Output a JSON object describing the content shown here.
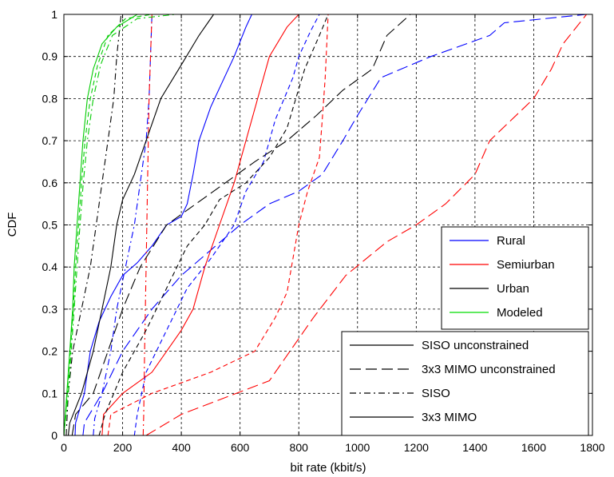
{
  "chart_data": {
    "type": "line",
    "xlabel": "bit rate (kbit/s)",
    "ylabel": "CDF",
    "xlim": [
      0,
      1800
    ],
    "ylim": [
      0,
      1
    ],
    "xticks": [
      0,
      200,
      400,
      600,
      800,
      1000,
      1200,
      1400,
      1600,
      1800
    ],
    "yticks": [
      0,
      0.1,
      0.2,
      0.3,
      0.4,
      0.5,
      0.6,
      0.7,
      0.8,
      0.9,
      1
    ],
    "xtick_labels": [
      "0",
      "200",
      "400",
      "600",
      "800",
      "1000",
      "1200",
      "1400",
      "1600",
      "1800"
    ],
    "ytick_labels": [
      "0",
      "0.1",
      "0.2",
      "0.3",
      "0.4",
      "0.5",
      "0.6",
      "0.7",
      "0.8",
      "0.9",
      "1"
    ],
    "grid": true,
    "environment_legend": {
      "placement": "right-middle",
      "items": [
        {
          "label": "Rural",
          "color": "#0000ff"
        },
        {
          "label": "Semiurban",
          "color": "#ff0000"
        },
        {
          "label": "Urban",
          "color": "#000000"
        },
        {
          "label": "Modeled",
          "color": "#00dd00"
        }
      ]
    },
    "style_legend": {
      "placement": "bottom-right",
      "items": [
        {
          "label": "SISO unconstrained",
          "dash": "solid"
        },
        {
          "label": "3x3 MIMO unconstrained",
          "dash": "longdash"
        },
        {
          "label": "SISO",
          "dash": "dashdot"
        },
        {
          "label": "3x3 MIMO",
          "dash": "solid"
        }
      ]
    },
    "series": [
      {
        "env": "Rural",
        "style": "siso_unconstrained",
        "color": "#0000ff",
        "dash": "solid",
        "points": [
          [
            38,
            0
          ],
          [
            40,
            0.03
          ],
          [
            70,
            0.1
          ],
          [
            90,
            0.2
          ],
          [
            120,
            0.27
          ],
          [
            160,
            0.33
          ],
          [
            200,
            0.38
          ],
          [
            250,
            0.41
          ],
          [
            300,
            0.45
          ],
          [
            350,
            0.5
          ],
          [
            400,
            0.52
          ],
          [
            420,
            0.55
          ],
          [
            440,
            0.62
          ],
          [
            460,
            0.7
          ],
          [
            500,
            0.78
          ],
          [
            540,
            0.84
          ],
          [
            580,
            0.9
          ],
          [
            620,
            0.97
          ],
          [
            640,
            1
          ]
        ]
      },
      {
        "env": "Rural",
        "style": "mimo_unconstrained",
        "color": "#0000ff",
        "dash": "longdash",
        "points": [
          [
            65,
            0
          ],
          [
            70,
            0.03
          ],
          [
            130,
            0.1
          ],
          [
            200,
            0.2
          ],
          [
            300,
            0.3
          ],
          [
            400,
            0.38
          ],
          [
            500,
            0.44
          ],
          [
            600,
            0.5
          ],
          [
            700,
            0.55
          ],
          [
            800,
            0.58
          ],
          [
            880,
            0.62
          ],
          [
            950,
            0.7
          ],
          [
            1000,
            0.76
          ],
          [
            1080,
            0.85
          ],
          [
            1250,
            0.9
          ],
          [
            1450,
            0.95
          ],
          [
            1500,
            0.98
          ],
          [
            1780,
            1
          ]
        ]
      },
      {
        "env": "Rural",
        "style": "siso",
        "color": "#0000ff",
        "dash": "dashdot",
        "points": [
          [
            100,
            0
          ],
          [
            105,
            0.04
          ],
          [
            130,
            0.1
          ],
          [
            160,
            0.2
          ],
          [
            180,
            0.3
          ],
          [
            210,
            0.4
          ],
          [
            240,
            0.5
          ],
          [
            260,
            0.6
          ],
          [
            280,
            0.7
          ],
          [
            290,
            0.8
          ],
          [
            295,
            0.9
          ],
          [
            300,
            1
          ]
        ]
      },
      {
        "env": "Rural",
        "style": "mimo",
        "color": "#0000ff",
        "dash": "dash",
        "points": [
          [
            240,
            0
          ],
          [
            250,
            0.05
          ],
          [
            280,
            0.15
          ],
          [
            350,
            0.25
          ],
          [
            420,
            0.35
          ],
          [
            500,
            0.42
          ],
          [
            580,
            0.5
          ],
          [
            620,
            0.58
          ],
          [
            680,
            0.65
          ],
          [
            720,
            0.75
          ],
          [
            780,
            0.85
          ],
          [
            800,
            0.9
          ],
          [
            840,
            0.96
          ],
          [
            870,
            1
          ]
        ]
      },
      {
        "env": "Semiurban",
        "style": "siso_unconstrained",
        "color": "#ff0000",
        "dash": "solid",
        "points": [
          [
            130,
            0
          ],
          [
            135,
            0.05
          ],
          [
            200,
            0.1
          ],
          [
            300,
            0.15
          ],
          [
            400,
            0.25
          ],
          [
            440,
            0.3
          ],
          [
            480,
            0.4
          ],
          [
            530,
            0.5
          ],
          [
            580,
            0.6
          ],
          [
            620,
            0.7
          ],
          [
            660,
            0.8
          ],
          [
            700,
            0.9
          ],
          [
            760,
            0.97
          ],
          [
            800,
            1
          ]
        ]
      },
      {
        "env": "Semiurban",
        "style": "mimo_unconstrained",
        "color": "#ff0000",
        "dash": "longdash",
        "points": [
          [
            280,
            0
          ],
          [
            400,
            0.05
          ],
          [
            700,
            0.13
          ],
          [
            850,
            0.28
          ],
          [
            960,
            0.38
          ],
          [
            1100,
            0.46
          ],
          [
            1200,
            0.5
          ],
          [
            1300,
            0.55
          ],
          [
            1400,
            0.62
          ],
          [
            1450,
            0.7
          ],
          [
            1600,
            0.8
          ],
          [
            1660,
            0.87
          ],
          [
            1700,
            0.93
          ],
          [
            1780,
            1
          ]
        ]
      },
      {
        "env": "Semiurban",
        "style": "siso",
        "color": "#ff0000",
        "dash": "dashdot",
        "points": [
          [
            270,
            0
          ],
          [
            272,
            0.05
          ],
          [
            275,
            0.2
          ],
          [
            280,
            0.4
          ],
          [
            285,
            0.6
          ],
          [
            290,
            0.8
          ],
          [
            300,
            1
          ]
        ]
      },
      {
        "env": "Semiurban",
        "style": "mimo",
        "color": "#ff0000",
        "dash": "dash",
        "points": [
          [
            150,
            0
          ],
          [
            160,
            0.05
          ],
          [
            300,
            0.1
          ],
          [
            500,
            0.15
          ],
          [
            650,
            0.2
          ],
          [
            720,
            0.28
          ],
          [
            760,
            0.34
          ],
          [
            780,
            0.42
          ],
          [
            800,
            0.5
          ],
          [
            830,
            0.58
          ],
          [
            870,
            0.66
          ],
          [
            880,
            0.75
          ],
          [
            890,
            0.85
          ],
          [
            900,
            1
          ]
        ]
      },
      {
        "env": "Urban",
        "style": "siso_unconstrained",
        "color": "#000000",
        "dash": "solid",
        "points": [
          [
            15,
            0
          ],
          [
            20,
            0.03
          ],
          [
            60,
            0.1
          ],
          [
            100,
            0.2
          ],
          [
            130,
            0.3
          ],
          [
            160,
            0.4
          ],
          [
            180,
            0.5
          ],
          [
            200,
            0.56
          ],
          [
            240,
            0.62
          ],
          [
            280,
            0.7
          ],
          [
            330,
            0.8
          ],
          [
            400,
            0.88
          ],
          [
            460,
            0.95
          ],
          [
            510,
            1
          ]
        ]
      },
      {
        "env": "Urban",
        "style": "mimo_unconstrained",
        "color": "#000000",
        "dash": "longdash",
        "points": [
          [
            28,
            0
          ],
          [
            40,
            0.05
          ],
          [
            100,
            0.1
          ],
          [
            150,
            0.2
          ],
          [
            200,
            0.3
          ],
          [
            260,
            0.4
          ],
          [
            350,
            0.5
          ],
          [
            450,
            0.55
          ],
          [
            550,
            0.6
          ],
          [
            650,
            0.65
          ],
          [
            760,
            0.7
          ],
          [
            860,
            0.76
          ],
          [
            950,
            0.82
          ],
          [
            1050,
            0.87
          ],
          [
            1100,
            0.95
          ],
          [
            1180,
            1
          ]
        ]
      },
      {
        "env": "Urban",
        "style": "siso",
        "color": "#000000",
        "dash": "dashdot",
        "points": [
          [
            8,
            0
          ],
          [
            15,
            0.1
          ],
          [
            30,
            0.2
          ],
          [
            60,
            0.3
          ],
          [
            90,
            0.4
          ],
          [
            110,
            0.5
          ],
          [
            130,
            0.6
          ],
          [
            150,
            0.7
          ],
          [
            170,
            0.8
          ],
          [
            180,
            0.9
          ],
          [
            195,
            1
          ]
        ]
      },
      {
        "env": "Urban",
        "style": "mimo",
        "color": "#000000",
        "dash": "dash",
        "points": [
          [
            120,
            0
          ],
          [
            140,
            0.05
          ],
          [
            200,
            0.15
          ],
          [
            280,
            0.25
          ],
          [
            350,
            0.35
          ],
          [
            420,
            0.45
          ],
          [
            480,
            0.5
          ],
          [
            530,
            0.56
          ],
          [
            620,
            0.6
          ],
          [
            700,
            0.66
          ],
          [
            760,
            0.73
          ],
          [
            790,
            0.8
          ],
          [
            820,
            0.87
          ],
          [
            870,
            0.95
          ],
          [
            900,
            1
          ]
        ]
      },
      {
        "env": "Modeled",
        "style": "modeled_a",
        "color": "#00cc00",
        "dash": "solid",
        "points": [
          [
            0,
            0
          ],
          [
            10,
            0.1
          ],
          [
            20,
            0.2
          ],
          [
            30,
            0.3
          ],
          [
            35,
            0.4
          ],
          [
            45,
            0.5
          ],
          [
            55,
            0.6
          ],
          [
            65,
            0.7
          ],
          [
            80,
            0.8
          ],
          [
            100,
            0.87
          ],
          [
            130,
            0.93
          ],
          [
            180,
            0.97
          ],
          [
            250,
            1
          ]
        ]
      },
      {
        "env": "Modeled",
        "style": "modeled_b",
        "color": "#00cc00",
        "dash": "dash",
        "points": [
          [
            0,
            0
          ],
          [
            12,
            0.1
          ],
          [
            22,
            0.2
          ],
          [
            32,
            0.3
          ],
          [
            40,
            0.4
          ],
          [
            50,
            0.5
          ],
          [
            60,
            0.6
          ],
          [
            72,
            0.7
          ],
          [
            90,
            0.8
          ],
          [
            115,
            0.88
          ],
          [
            150,
            0.95
          ],
          [
            210,
            0.99
          ],
          [
            300,
            1
          ]
        ]
      },
      {
        "env": "Modeled",
        "style": "modeled_c",
        "color": "#00cc00",
        "dash": "dashdot",
        "points": [
          [
            0,
            0
          ],
          [
            15,
            0.1
          ],
          [
            25,
            0.2
          ],
          [
            35,
            0.3
          ],
          [
            45,
            0.4
          ],
          [
            55,
            0.5
          ],
          [
            66,
            0.6
          ],
          [
            80,
            0.7
          ],
          [
            100,
            0.8
          ],
          [
            125,
            0.88
          ],
          [
            165,
            0.95
          ],
          [
            250,
            0.99
          ],
          [
            380,
            1
          ]
        ]
      }
    ]
  }
}
